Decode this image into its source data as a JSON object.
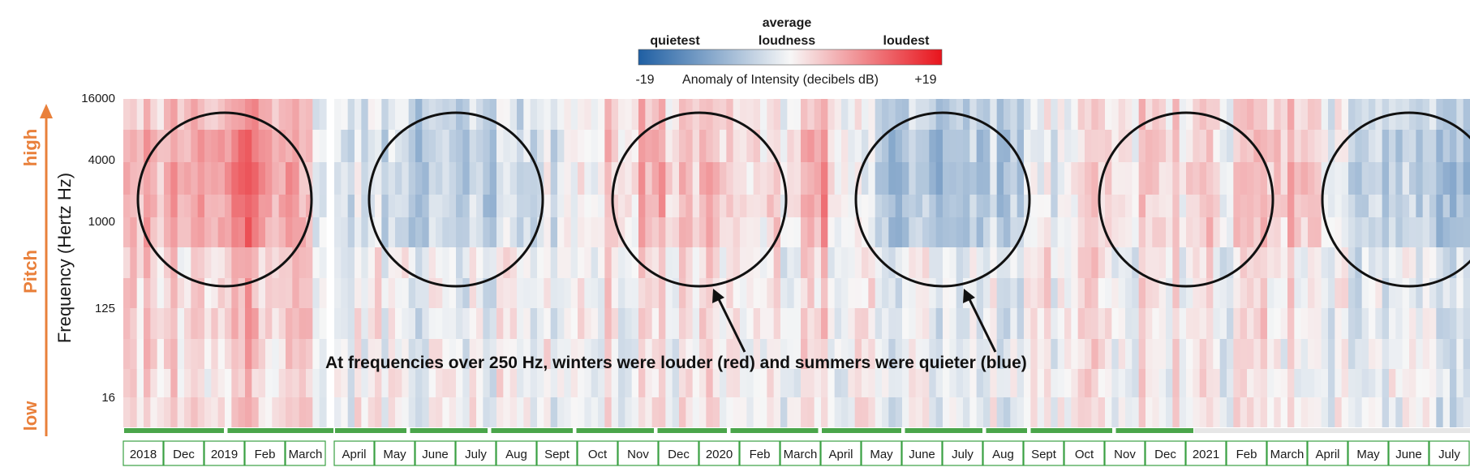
{
  "chart_data": {
    "type": "heatmap",
    "title": "",
    "ylabel": "Frequency (Hertz Hz)",
    "pitch_axis": {
      "label": "Pitch",
      "high": "high",
      "low": "low"
    },
    "colorbar": {
      "min_label": "-19",
      "max_label": "+19",
      "min_value": -19,
      "max_value": 19,
      "title": "Anomaly of Intensity (decibels dB)",
      "label_low": "quietest",
      "label_mid_line1": "average",
      "label_mid_line2": "loudness",
      "label_high": "loudest",
      "color_low": "#1f5fa3",
      "color_mid": "#f7f7f7",
      "color_high": "#e8141c"
    },
    "y_ticks": [
      "16000",
      "4000",
      "1000",
      "125",
      "16"
    ],
    "x_months": [
      "2018",
      "Dec",
      "2019",
      "Feb",
      "March",
      "April",
      "May",
      "June",
      "July",
      "Aug",
      "Sept",
      "Oct",
      "Nov",
      "Dec",
      "2020",
      "Feb",
      "March",
      "April",
      "May",
      "June",
      "July",
      "Aug",
      "Sept",
      "Oct",
      "Nov",
      "Dec",
      "2021",
      "Feb",
      "March",
      "April",
      "May",
      "June",
      "July"
    ],
    "monthly_anomaly_high_band_db": [
      4,
      6,
      8,
      11,
      6,
      -2,
      -4,
      -6,
      -6,
      -5,
      -3,
      1,
      4,
      5,
      4,
      3,
      2,
      8,
      -4,
      -7,
      -7,
      -6,
      -4,
      1,
      2,
      3,
      3,
      1,
      5,
      6,
      -4,
      -6,
      -6
    ],
    "monthly_anomaly_low_band_db": [
      5,
      4,
      6,
      8,
      5,
      -1,
      -1,
      -2,
      -2,
      -1,
      -1,
      1,
      2,
      2,
      2,
      2,
      1,
      5,
      -1,
      -2,
      -2,
      -2,
      -2,
      3,
      1,
      1,
      1,
      -1,
      4,
      2,
      -3,
      -4,
      -3
    ],
    "circles": [
      {
        "center_month_index": 2.5,
        "season": "winter"
      },
      {
        "center_month_index": 8.0,
        "season": "summer"
      },
      {
        "center_month_index": 14.0,
        "season": "winter"
      },
      {
        "center_month_index": 20.0,
        "season": "summer"
      },
      {
        "center_month_index": 26.0,
        "season": "winter"
      },
      {
        "center_month_index": 31.5,
        "season": "summer"
      }
    ],
    "annotation": "At frequencies over 250 Hz, winters were louder (red) and summers were quieter (blue)",
    "data_gap_after_month_index": 4
  },
  "colors": {
    "accent_orange": "#e9803b",
    "month_box_border": "#3aa043",
    "season_bar": "#4aa54a"
  }
}
